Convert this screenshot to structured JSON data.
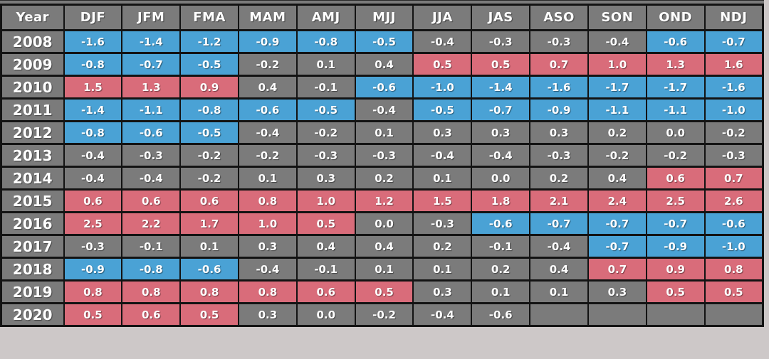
{
  "page": {
    "background": "#cdc8c8"
  },
  "chart_data": {
    "type": "table",
    "columns": [
      "Year",
      "DJF",
      "JFM",
      "FMA",
      "MAM",
      "AMJ",
      "MJJ",
      "JJA",
      "JAS",
      "ASO",
      "SON",
      "OND",
      "NDJ"
    ],
    "cell_colors": {
      "blue": "#4aa2d5",
      "red": "#d96c7a",
      "gray": "#7b7b7b",
      "border": "#131313",
      "text": "#ffffff"
    },
    "rows": [
      {
        "year": "2008",
        "values": [
          "-1.6",
          "-1.4",
          "-1.2",
          "-0.9",
          "-0.8",
          "-0.5",
          "-0.4",
          "-0.3",
          "-0.3",
          "-0.4",
          "-0.6",
          "-0.7"
        ],
        "states": [
          "blue",
          "blue",
          "blue",
          "blue",
          "blue",
          "blue",
          "gray",
          "gray",
          "gray",
          "gray",
          "blue",
          "blue"
        ]
      },
      {
        "year": "2009",
        "values": [
          "-0.8",
          "-0.7",
          "-0.5",
          "-0.2",
          "0.1",
          "0.4",
          "0.5",
          "0.5",
          "0.7",
          "1.0",
          "1.3",
          "1.6"
        ],
        "states": [
          "blue",
          "blue",
          "blue",
          "gray",
          "gray",
          "gray",
          "red",
          "red",
          "red",
          "red",
          "red",
          "red"
        ]
      },
      {
        "year": "2010",
        "values": [
          "1.5",
          "1.3",
          "0.9",
          "0.4",
          "-0.1",
          "-0.6",
          "-1.0",
          "-1.4",
          "-1.6",
          "-1.7",
          "-1.7",
          "-1.6"
        ],
        "states": [
          "red",
          "red",
          "red",
          "gray",
          "gray",
          "blue",
          "blue",
          "blue",
          "blue",
          "blue",
          "blue",
          "blue"
        ]
      },
      {
        "year": "2011",
        "values": [
          "-1.4",
          "-1.1",
          "-0.8",
          "-0.6",
          "-0.5",
          "-0.4",
          "-0.5",
          "-0.7",
          "-0.9",
          "-1.1",
          "-1.1",
          "-1.0"
        ],
        "states": [
          "blue",
          "blue",
          "blue",
          "blue",
          "blue",
          "gray",
          "blue",
          "blue",
          "blue",
          "blue",
          "blue",
          "blue"
        ]
      },
      {
        "year": "2012",
        "values": [
          "-0.8",
          "-0.6",
          "-0.5",
          "-0.4",
          "-0.2",
          "0.1",
          "0.3",
          "0.3",
          "0.3",
          "0.2",
          "0.0",
          "-0.2"
        ],
        "states": [
          "blue",
          "blue",
          "blue",
          "gray",
          "gray",
          "gray",
          "gray",
          "gray",
          "gray",
          "gray",
          "gray",
          "gray"
        ]
      },
      {
        "year": "2013",
        "values": [
          "-0.4",
          "-0.3",
          "-0.2",
          "-0.2",
          "-0.3",
          "-0.3",
          "-0.4",
          "-0.4",
          "-0.3",
          "-0.2",
          "-0.2",
          "-0.3"
        ],
        "states": [
          "gray",
          "gray",
          "gray",
          "gray",
          "gray",
          "gray",
          "gray",
          "gray",
          "gray",
          "gray",
          "gray",
          "gray"
        ]
      },
      {
        "year": "2014",
        "values": [
          "-0.4",
          "-0.4",
          "-0.2",
          "0.1",
          "0.3",
          "0.2",
          "0.1",
          "0.0",
          "0.2",
          "0.4",
          "0.6",
          "0.7"
        ],
        "states": [
          "gray",
          "gray",
          "gray",
          "gray",
          "gray",
          "gray",
          "gray",
          "gray",
          "gray",
          "gray",
          "red",
          "red"
        ]
      },
      {
        "year": "2015",
        "values": [
          "0.6",
          "0.6",
          "0.6",
          "0.8",
          "1.0",
          "1.2",
          "1.5",
          "1.8",
          "2.1",
          "2.4",
          "2.5",
          "2.6"
        ],
        "states": [
          "red",
          "red",
          "red",
          "red",
          "red",
          "red",
          "red",
          "red",
          "red",
          "red",
          "red",
          "red"
        ]
      },
      {
        "year": "2016",
        "values": [
          "2.5",
          "2.2",
          "1.7",
          "1.0",
          "0.5",
          "0.0",
          "-0.3",
          "-0.6",
          "-0.7",
          "-0.7",
          "-0.7",
          "-0.6"
        ],
        "states": [
          "red",
          "red",
          "red",
          "red",
          "red",
          "gray",
          "gray",
          "blue",
          "blue",
          "blue",
          "blue",
          "blue"
        ]
      },
      {
        "year": "2017",
        "values": [
          "-0.3",
          "-0.1",
          "0.1",
          "0.3",
          "0.4",
          "0.4",
          "0.2",
          "-0.1",
          "-0.4",
          "-0.7",
          "-0.9",
          "-1.0"
        ],
        "states": [
          "gray",
          "gray",
          "gray",
          "gray",
          "gray",
          "gray",
          "gray",
          "gray",
          "gray",
          "blue",
          "blue",
          "blue"
        ]
      },
      {
        "year": "2018",
        "values": [
          "-0.9",
          "-0.8",
          "-0.6",
          "-0.4",
          "-0.1",
          "0.1",
          "0.1",
          "0.2",
          "0.4",
          "0.7",
          "0.9",
          "0.8"
        ],
        "states": [
          "blue",
          "blue",
          "blue",
          "gray",
          "gray",
          "gray",
          "gray",
          "gray",
          "gray",
          "red",
          "red",
          "red"
        ]
      },
      {
        "year": "2019",
        "values": [
          "0.8",
          "0.8",
          "0.8",
          "0.8",
          "0.6",
          "0.5",
          "0.3",
          "0.1",
          "0.1",
          "0.3",
          "0.5",
          "0.5"
        ],
        "states": [
          "red",
          "red",
          "red",
          "red",
          "red",
          "red",
          "gray",
          "gray",
          "gray",
          "gray",
          "red",
          "red"
        ]
      },
      {
        "year": "2020",
        "values": [
          "0.5",
          "0.6",
          "0.5",
          "0.3",
          "0.0",
          "-0.2",
          "-0.4",
          "-0.6",
          "",
          "",
          "",
          ""
        ],
        "states": [
          "red",
          "red",
          "red",
          "gray",
          "gray",
          "gray",
          "gray",
          "gray",
          "gray",
          "gray",
          "gray",
          "gray"
        ]
      }
    ]
  }
}
